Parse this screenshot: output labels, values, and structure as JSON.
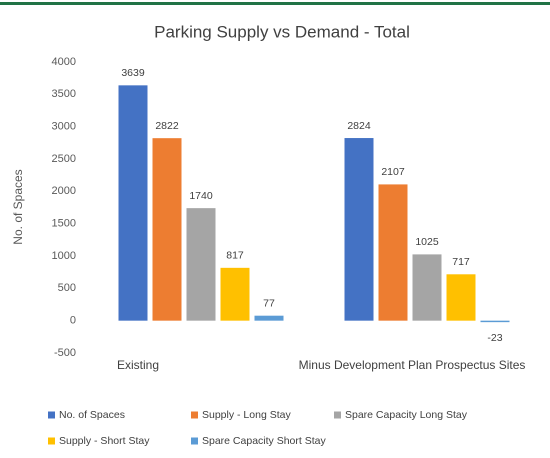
{
  "chart_data": {
    "type": "bar",
    "title": "Parking Supply vs Demand - Total",
    "y_label": "No. of Spaces",
    "categories": [
      "Existing",
      "Minus Development Plan Prospectus Sites"
    ],
    "series": [
      {
        "name": "No. of Spaces",
        "color": "#4472c4",
        "values": [
          3639,
          2824
        ]
      },
      {
        "name": "Supply - Long Stay",
        "color": "#ed7d31",
        "values": [
          2822,
          2107
        ]
      },
      {
        "name": "Spare Capacity Long Stay",
        "color": "#a5a5a5",
        "values": [
          1740,
          1025
        ]
      },
      {
        "name": "Supply - Short Stay",
        "color": "#ffc000",
        "values": [
          817,
          717
        ]
      },
      {
        "name": "Spare Capacity Short Stay",
        "color": "#5b9bd5",
        "values": [
          77,
          -23
        ]
      }
    ],
    "ylim": [
      -500,
      4000
    ],
    "yticks": [
      -500,
      0,
      500,
      1000,
      1500,
      2000,
      2500,
      3000,
      3500,
      4000
    ],
    "grid": false,
    "legend": "bottom"
  }
}
